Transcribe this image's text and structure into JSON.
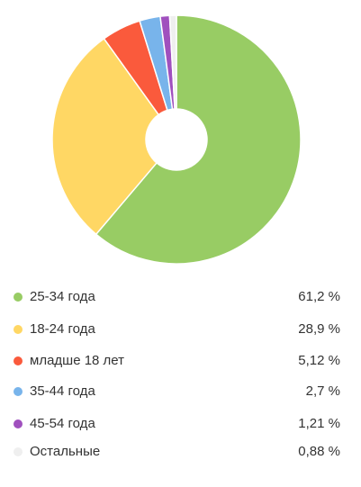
{
  "chart_data": {
    "type": "pie",
    "donut": true,
    "categories": [
      "25-34 года",
      "18-24 года",
      "младше 18 лет",
      "35-44 года",
      "45-54 года",
      "Остальные"
    ],
    "values": [
      61.2,
      28.9,
      5.12,
      2.7,
      1.21,
      0.88
    ],
    "value_labels": [
      "61,2 %",
      "28,9 %",
      "5,12 %",
      "2,7 %",
      "1,21 %",
      "0,88 %"
    ],
    "colors": [
      "#98cc64",
      "#ffd764",
      "#fa5a3c",
      "#78b4eb",
      "#a050be",
      "#efefef"
    ],
    "legend_position": "bottom",
    "title": "",
    "xlabel": "",
    "ylabel": ""
  }
}
